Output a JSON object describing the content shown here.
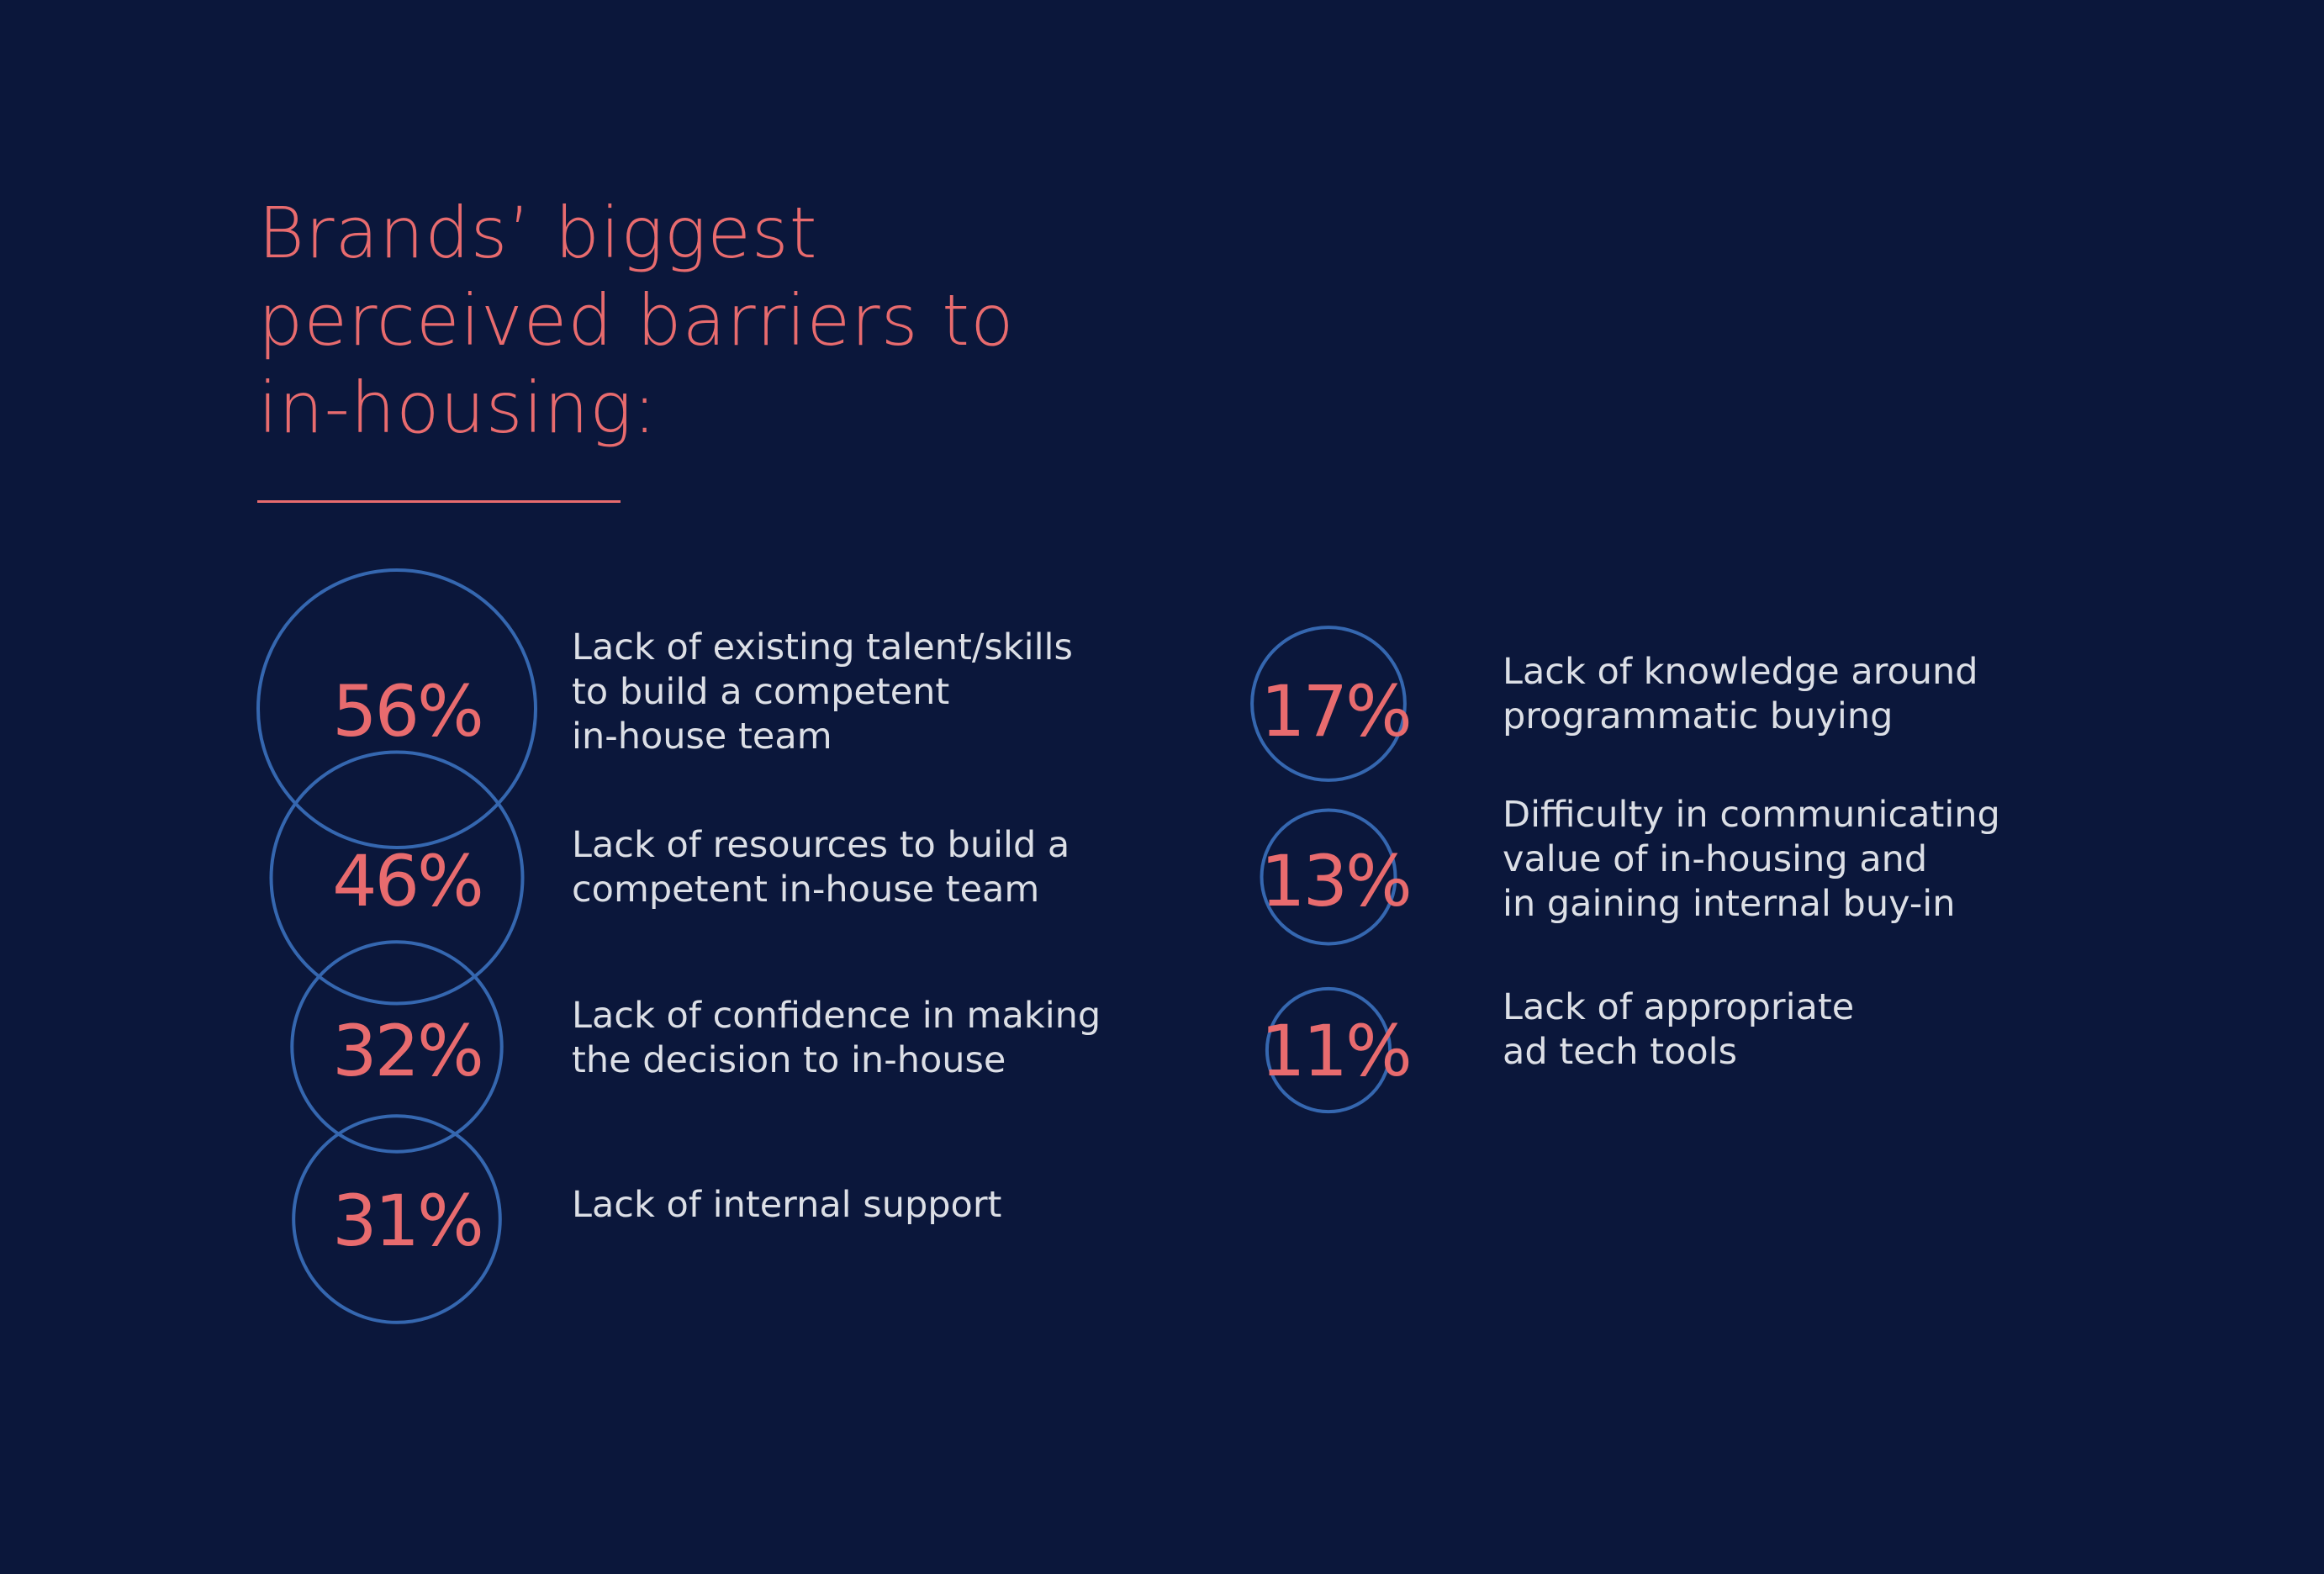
{
  "title_lines": [
    "Brands’ biggest",
    "perceived barriers to",
    "in-housing:"
  ],
  "colors": {
    "background": "#0b173b",
    "accent": "#e86b6e",
    "circle_stroke": "#3567b0",
    "label_text": "#dcdfe6"
  },
  "chart_data": {
    "type": "bubble",
    "title": "Brands’ biggest perceived barriers to in-housing:",
    "unit": "%",
    "items": [
      {
        "value": 56,
        "label": "56%",
        "text": [
          "Lack of existing talent/skills",
          "to build a competent",
          "in-house team"
        ]
      },
      {
        "value": 46,
        "label": "46%",
        "text": [
          "Lack of resources to build a",
          "competent in-house team"
        ]
      },
      {
        "value": 32,
        "label": "32%",
        "text": [
          "Lack of confidence in making",
          "the decision to in-house"
        ]
      },
      {
        "value": 31,
        "label": "31%",
        "text": [
          "Lack of internal support"
        ]
      },
      {
        "value": 17,
        "label": "17%",
        "text": [
          "Lack of knowledge around",
          "programmatic buying"
        ]
      },
      {
        "value": 13,
        "label": "13%",
        "text": [
          "Difficulty in communicating",
          "value of in-housing and",
          "in gaining internal buy-in"
        ]
      },
      {
        "value": 11,
        "label": "11%",
        "text": [
          "Lack of appropriate",
          "ad tech tools"
        ]
      }
    ]
  }
}
